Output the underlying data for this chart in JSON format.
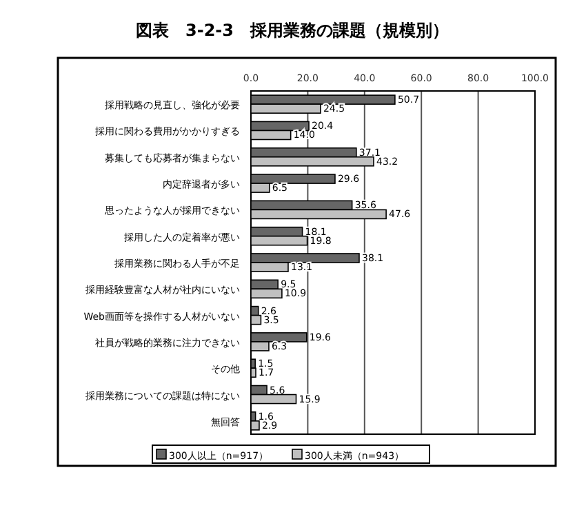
{
  "chart_data": {
    "type": "bar",
    "orientation": "horizontal",
    "title": "図表　3-2-3　採用業務の課題（規模別）",
    "categories": [
      "採用戦略の見直し、強化が必要",
      "採用に関わる費用がかかりすぎる",
      "募集しても応募者が集まらない",
      "内定辞退者が多い",
      "思ったような人が採用できない",
      "採用した人の定着率が悪い",
      "採用業務に関わる人手が不足",
      "採用経験豊富な人材が社内にいない",
      "Web画面等を操作する人材がいない",
      "社員が戦略的業務に注力できない",
      "その他",
      "採用業務についての課題は特にない",
      "無回答"
    ],
    "series": [
      {
        "name": "300人以上（n=917）",
        "color": "#666666",
        "values": [
          50.7,
          20.4,
          37.1,
          29.6,
          35.6,
          18.1,
          38.1,
          9.5,
          2.6,
          19.6,
          1.5,
          5.6,
          1.6
        ],
        "value_labels": [
          "50.7",
          "20.4",
          "37.1",
          "29.6",
          "35.6",
          "18.1",
          "38.1",
          "9.5",
          "2.6",
          "19.6",
          "1.5",
          "5.6",
          "1.6"
        ]
      },
      {
        "name": "300人未満（n=943）",
        "color": "#c0c0c0",
        "values": [
          24.5,
          14.0,
          43.2,
          6.5,
          47.6,
          19.8,
          13.1,
          10.9,
          3.5,
          6.3,
          1.7,
          15.9,
          2.9
        ],
        "value_labels": [
          "24.5",
          "14.0",
          "43.2",
          "6.5",
          "47.6",
          "19.8",
          "13.1",
          "10.9",
          "3.5",
          "6.3",
          "1.7",
          "15.9",
          "2.9"
        ]
      }
    ],
    "xlim": [
      0,
      100
    ],
    "xticks": [
      {
        "value": 0,
        "label": "0.0"
      },
      {
        "value": 20,
        "label": "20.0"
      },
      {
        "value": 40,
        "label": "40.0"
      },
      {
        "value": 60,
        "label": "60.0"
      },
      {
        "value": 80,
        "label": "80.0"
      },
      {
        "value": 100,
        "label": "100.0"
      }
    ],
    "grid": "x",
    "legend": "bottom"
  }
}
